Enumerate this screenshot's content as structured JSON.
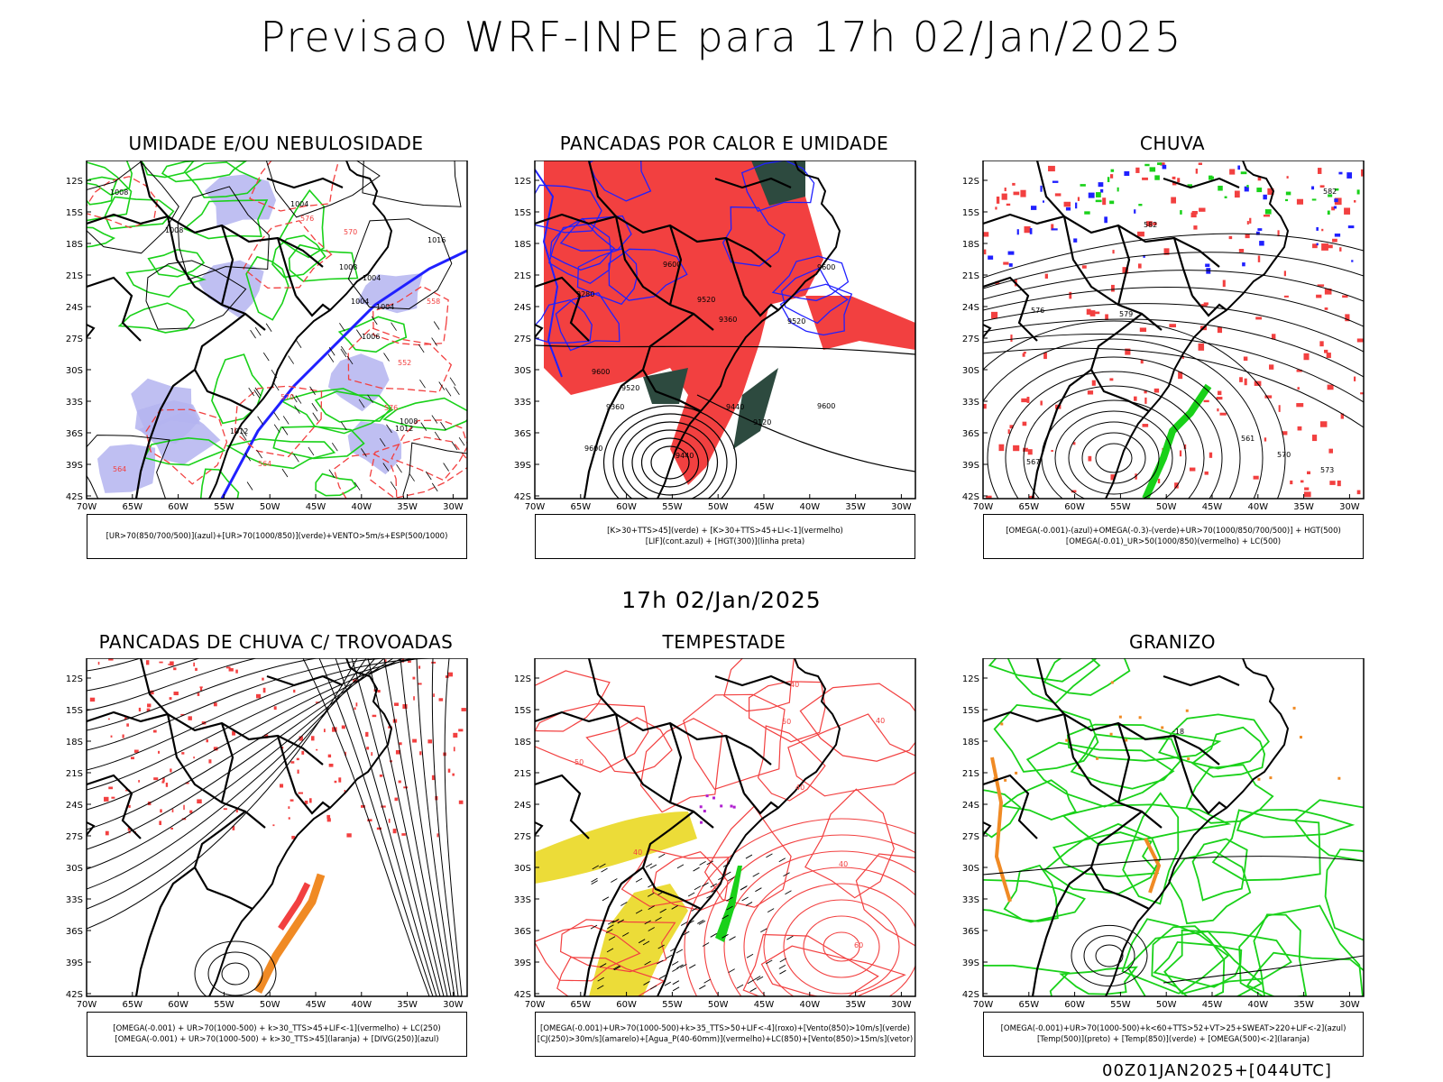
{
  "title": "Previsao WRF-INPE  para 17h 02/Jan/2025",
  "mid_time": "17h 02/Jan/2025",
  "footer": "00Z01JAN2025+[044UTC]",
  "lat_labels": [
    "12S",
    "15S",
    "18S",
    "21S",
    "24S",
    "27S",
    "30S",
    "33S",
    "36S",
    "39S",
    "42S"
  ],
  "lon_labels": [
    "70W",
    "65W",
    "60W",
    "55W",
    "50W",
    "45W",
    "40W",
    "35W",
    "30W"
  ],
  "colors": {
    "red": "#f24040",
    "green": "#19d119",
    "blue": "#2020ff",
    "lavender": "#b4b4f0",
    "darkgreen": "#2d4a3f",
    "orange": "#f08a24",
    "yellow": "#ecdc38",
    "purple": "#b020d0"
  },
  "panels": [
    {
      "title": "UMIDADE E/OU NEBULOSIDADE",
      "legend": [
        "[UR>70(850/700/500)](azul)+[UR>70(1000/850)](verde)+VENTO>5m/s+ESP(500/1000)"
      ],
      "contour_labels": [
        "1008",
        "1012",
        "1004",
        "1004",
        "1008",
        "1012",
        "1004",
        "1008",
        "1016",
        "1004",
        "1006",
        "1008",
        "576",
        "570",
        "564",
        "558",
        "552",
        "564",
        "570",
        "576"
      ]
    },
    {
      "title": "PANCADAS POR CALOR E UMIDADE",
      "legend": [
        "[K>30+TTS>45](verde) + [K>30+TTS>45+LI<-1](vermelho)",
        "[LIF](cont.azul) + [HGT(300)](linha preta)"
      ],
      "contour_labels": [
        "9600",
        "9600",
        "9600",
        "9600",
        "9600",
        "9520",
        "9520",
        "9520",
        "9440",
        "9360",
        "9280",
        "9120",
        "9360",
        "9440"
      ]
    },
    {
      "title": "CHUVA",
      "legend": [
        "[OMEGA(-0.001)-(azul)+OMEGA(-0.3)-(verde)+UR>70(1000/850/700/500)] + HGT(500)",
        "[OMEGA(-0.01)_UR>50(1000/850)(vermelho) + LC(500)"
      ],
      "contour_labels": [
        "582",
        "582",
        "579",
        "576",
        "573",
        "570",
        "567",
        "561"
      ]
    },
    {
      "title": "PANCADAS DE CHUVA C/ TROVOADAS",
      "legend": [
        "[OMEGA(-0.001) + UR>70(1000-500) + k>30_TTS>45+LIF<-1](vermelho) + LC(250)",
        "[OMEGA(-0.001) + UR>70(1000-500) + k>30_TTS>45](laranja) + [DIVG(250)](azul)"
      ],
      "contour_labels": []
    },
    {
      "title": "TEMPESTADE",
      "legend": [
        "[OMEGA(-0.001)+UR>70(1000-500)+k>35_TTS>50+LIF<-4](roxo)+[Vento(850)>10m/s](verde)",
        "[CJ(250)>30m/s](amarelo)+[Agua_P(40-60mm)](vermelho)+LC(850)+[Vento(850)>15m/s](vetor)"
      ],
      "contour_labels": [
        "50",
        "40",
        "40",
        "40",
        "50",
        "40",
        "60",
        "40"
      ]
    },
    {
      "title": "GRANIZO",
      "legend": [
        "[OMEGA(-0.001)+UR>70(1000-500)+k<60+TTS>52+VT>25+SWEAT>220+LIF<-2](azul)",
        "[Temp(500)](preto) + [Temp(850)](verde) + [OMEGA(500)<-2](laranja)"
      ],
      "contour_labels": [
        "-18"
      ]
    }
  ]
}
